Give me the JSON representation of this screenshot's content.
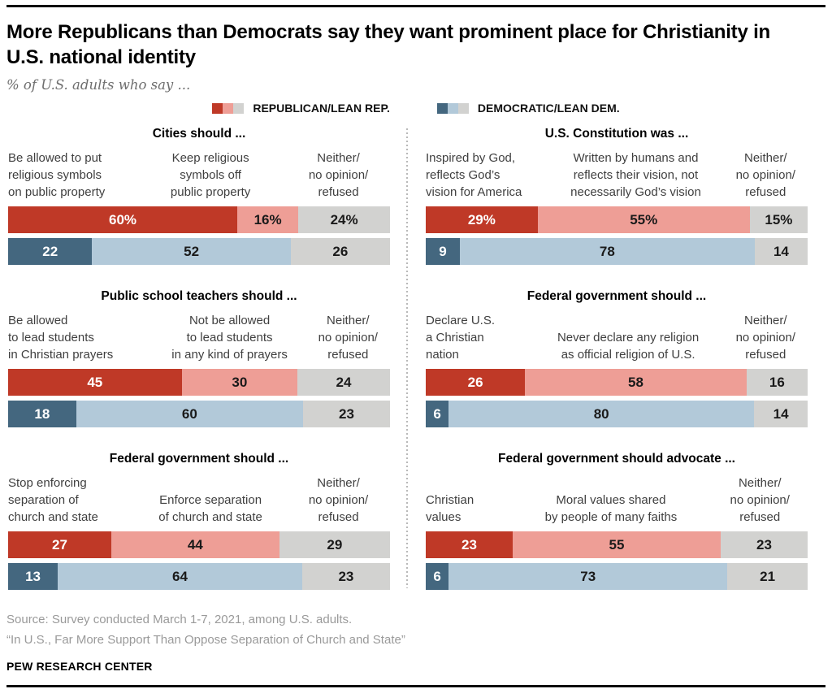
{
  "header": {
    "title": "More Republicans than Democrats say they want prominent place for Christianity in U.S. national identity",
    "subtitle": "% of U.S. adults who say ..."
  },
  "legend": {
    "republican": "REPUBLICAN/LEAN REP.",
    "democratic": "DEMOCRATIC/LEAN DEM."
  },
  "colors": {
    "rep_dark": "#bf3927",
    "rep_light": "#ee9e96",
    "neutral": "#d2d2d0",
    "dem_dark": "#44677f",
    "dem_light": "#b2c9d9"
  },
  "chart_data": [
    {
      "type": "bar",
      "orientation": "horizontal",
      "stacked": true,
      "position": "left-top",
      "title": "Cities should ...",
      "categories": [
        "Be allowed to put\nreligious symbols\non public property",
        "Keep religious\nsymbols off\npublic property",
        "Neither/\nno opinion/\nrefused"
      ],
      "series": [
        {
          "name": "Republican/Lean Rep.",
          "values": [
            60,
            16,
            24
          ],
          "display": [
            "60%",
            "16%",
            "24%"
          ]
        },
        {
          "name": "Democratic/Lean Dem.",
          "values": [
            22,
            52,
            26
          ],
          "display": [
            "22",
            "52",
            "26"
          ]
        }
      ]
    },
    {
      "type": "bar",
      "orientation": "horizontal",
      "stacked": true,
      "position": "right-top",
      "title": "U.S. Constitution was ...",
      "categories": [
        "Inspired by God,\nreflects God’s\nvision for America",
        "Written by humans and\nreflects their vision, not\nnecessarily God’s vision",
        "Neither/\nno opinion/\nrefused"
      ],
      "series": [
        {
          "name": "Republican/Lean Rep.",
          "values": [
            29,
            55,
            15
          ],
          "display": [
            "29%",
            "55%",
            "15%"
          ]
        },
        {
          "name": "Democratic/Lean Dem.",
          "values": [
            9,
            78,
            14
          ],
          "display": [
            "9",
            "78",
            "14"
          ]
        }
      ]
    },
    {
      "type": "bar",
      "orientation": "horizontal",
      "stacked": true,
      "position": "left-middle",
      "title": "Public school teachers should ...",
      "categories": [
        "Be allowed\nto lead students\nin Christian prayers",
        "Not be allowed\nto lead students\nin any kind of prayers",
        "Neither/\nno opinion/\nrefused"
      ],
      "series": [
        {
          "name": "Republican/Lean Rep.",
          "values": [
            45,
            30,
            24
          ],
          "display": [
            "45",
            "30",
            "24"
          ]
        },
        {
          "name": "Democratic/Lean Dem.",
          "values": [
            18,
            60,
            23
          ],
          "display": [
            "18",
            "60",
            "23"
          ]
        }
      ]
    },
    {
      "type": "bar",
      "orientation": "horizontal",
      "stacked": true,
      "position": "right-middle",
      "title": "Federal government should ...",
      "categories": [
        "Declare U.S.\na Christian\nnation",
        "Never declare any religion\nas official religion of U.S.",
        "Neither/\nno opinion/\nrefused"
      ],
      "series": [
        {
          "name": "Republican/Lean Rep.",
          "values": [
            26,
            58,
            16
          ],
          "display": [
            "26",
            "58",
            "16"
          ]
        },
        {
          "name": "Democratic/Lean Dem.",
          "values": [
            6,
            80,
            14
          ],
          "display": [
            "6",
            "80",
            "14"
          ]
        }
      ]
    },
    {
      "type": "bar",
      "orientation": "horizontal",
      "stacked": true,
      "position": "left-bottom",
      "title": "Federal government should ...",
      "categories": [
        "Stop enforcing\nseparation of\nchurch and state",
        "Enforce separation\nof church and state",
        "Neither/\nno opinion/\nrefused"
      ],
      "series": [
        {
          "name": "Republican/Lean Rep.",
          "values": [
            27,
            44,
            29
          ],
          "display": [
            "27",
            "44",
            "29"
          ]
        },
        {
          "name": "Democratic/Lean Dem.",
          "values": [
            13,
            64,
            23
          ],
          "display": [
            "13",
            "64",
            "23"
          ]
        }
      ]
    },
    {
      "type": "bar",
      "orientation": "horizontal",
      "stacked": true,
      "position": "right-bottom",
      "title": "Federal government should advocate ...",
      "categories": [
        "Christian\nvalues",
        "Moral values shared\nby people of many faiths",
        "Neither/\nno opinion/\nrefused"
      ],
      "series": [
        {
          "name": "Republican/Lean Rep.",
          "values": [
            23,
            55,
            23
          ],
          "display": [
            "23",
            "55",
            "23"
          ]
        },
        {
          "name": "Democratic/Lean Dem.",
          "values": [
            6,
            73,
            21
          ],
          "display": [
            "6",
            "73",
            "21"
          ]
        }
      ]
    }
  ],
  "footer": {
    "source_line1": "Source: Survey conducted March 1-7, 2021, among U.S. adults.",
    "source_line2": "“In U.S., Far More Support Than Oppose Separation of Church and State”",
    "brand": "PEW RESEARCH CENTER"
  }
}
